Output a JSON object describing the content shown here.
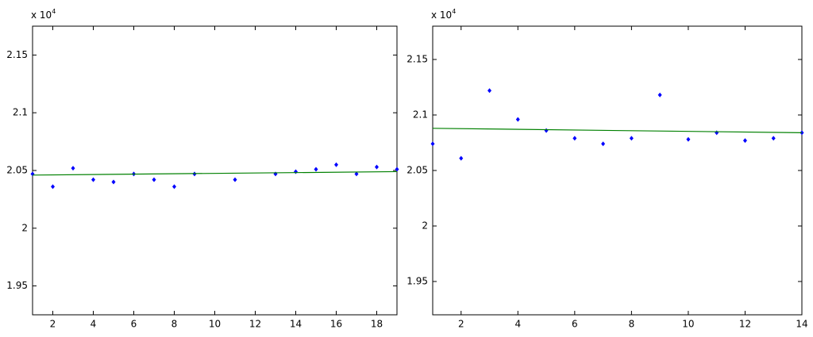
{
  "chart_data": [
    {
      "type": "scatter",
      "multiplier": {
        "base": "x 10",
        "exponent": "4"
      },
      "xlim": [
        1,
        19
      ],
      "xticks": [
        2,
        4,
        6,
        8,
        10,
        12,
        14,
        16,
        18
      ],
      "ylim": [
        1.925,
        2.175
      ],
      "yticks": [
        1.95,
        2,
        2.05,
        2.1,
        2.15
      ],
      "series": [
        {
          "style": "markers",
          "color": "#0000ff",
          "x": [
            1,
            2,
            3,
            4,
            5,
            6,
            7,
            8,
            9,
            11,
            13,
            14,
            15,
            16,
            17,
            18,
            19
          ],
          "values": [
            2.047,
            2.036,
            2.052,
            2.042,
            2.04,
            2.047,
            2.042,
            2.036,
            2.047,
            2.042,
            2.047,
            2.049,
            2.051,
            2.055,
            2.047,
            2.053,
            2.051
          ]
        },
        {
          "style": "line",
          "color": "#008000",
          "x": [
            1,
            19
          ],
          "values": [
            2.046,
            2.049
          ]
        }
      ]
    },
    {
      "type": "scatter",
      "multiplier": {
        "base": "x 10",
        "exponent": "4"
      },
      "xlim": [
        1,
        14
      ],
      "xticks": [
        2,
        4,
        6,
        8,
        10,
        12,
        14
      ],
      "ylim": [
        1.92,
        2.18
      ],
      "yticks": [
        1.95,
        2,
        2.05,
        2.1,
        2.15
      ],
      "series": [
        {
          "style": "markers",
          "color": "#0000ff",
          "x": [
            1,
            2,
            3,
            4,
            5,
            6,
            7,
            8,
            9,
            10,
            11,
            12,
            13,
            14
          ],
          "values": [
            2.074,
            2.061,
            2.122,
            2.096,
            2.086,
            2.079,
            2.074,
            2.079,
            2.118,
            2.078,
            2.084,
            2.077,
            2.079,
            2.084
          ]
        },
        {
          "style": "line",
          "color": "#008000",
          "x": [
            1,
            14
          ],
          "values": [
            2.088,
            2.084
          ]
        }
      ]
    }
  ]
}
